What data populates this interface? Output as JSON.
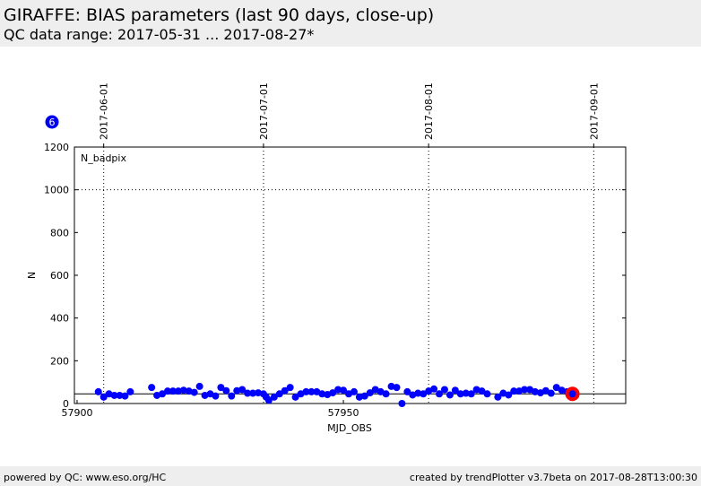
{
  "header": {
    "title": "GIRAFFE: BIAS parameters (last 90 days, close-up)",
    "subtitle": "QC data range: 2017-05-31 ... 2017-08-27*"
  },
  "footer": {
    "left": "powered by QC: www.eso.org/HC",
    "right": "created by trendPlotter v3.7beta on 2017-08-28T13:00:30"
  },
  "badge": {
    "text": "6",
    "color": "#0000ee"
  },
  "chart_data": {
    "type": "scatter",
    "title": "",
    "xlabel": "MJD_OBS",
    "ylabel": "N",
    "panel_label": "N_badpix",
    "xlim": [
      57899.5,
      58003
    ],
    "ylim": [
      0,
      1200
    ],
    "x_ticks": [
      57900,
      57950
    ],
    "y_ticks": [
      0,
      200,
      400,
      600,
      800,
      1000,
      1200
    ],
    "hlines": [
      {
        "y": 1000,
        "style": "dotted"
      },
      {
        "y": 45,
        "style": "solid"
      }
    ],
    "date_ticks": [
      {
        "label": "2017-06-01",
        "x": 57905
      },
      {
        "label": "2017-07-01",
        "x": 57935
      },
      {
        "label": "2017-08-01",
        "x": 57966
      },
      {
        "label": "2017-09-01",
        "x": 57997
      }
    ],
    "grid": true,
    "point_color": "#0000ff",
    "highlight_color": "#ff0000",
    "series": [
      {
        "x": [
          57904,
          57905,
          57906,
          57907,
          57908,
          57909,
          57910,
          57914,
          57915,
          57916,
          57917,
          57918,
          57919,
          57920,
          57921,
          57922,
          57923,
          57924,
          57925,
          57926,
          57927,
          57928,
          57929,
          57930,
          57931,
          57932,
          57933,
          57934,
          57935,
          57935.5,
          57936,
          57937,
          57938,
          57939,
          57940,
          57941,
          57942,
          57943,
          57944,
          57945,
          57946,
          57947,
          57948,
          57949,
          57950,
          57951,
          57952,
          57953,
          57954,
          57955,
          57956,
          57957,
          57958,
          57959,
          57960,
          57961,
          57962,
          57963,
          57964,
          57965,
          57966,
          57967,
          57968,
          57969,
          57970,
          57971,
          57972,
          57973,
          57974,
          57975,
          57976,
          57977,
          57979,
          57980,
          57981,
          57982,
          57983,
          57984,
          57985,
          57986,
          57987,
          57988,
          57989,
          57990,
          57991,
          57992
        ],
        "y": [
          55,
          30,
          45,
          38,
          38,
          35,
          55,
          75,
          38,
          45,
          58,
          58,
          58,
          62,
          58,
          52,
          80,
          38,
          45,
          35,
          75,
          60,
          35,
          60,
          65,
          48,
          48,
          50,
          45,
          30,
          15,
          30,
          45,
          60,
          75,
          30,
          45,
          55,
          55,
          55,
          45,
          42,
          50,
          65,
          62,
          45,
          55,
          30,
          35,
          50,
          65,
          55,
          45,
          80,
          75,
          0,
          55,
          40,
          48,
          45,
          58,
          68,
          45,
          65,
          40,
          62,
          45,
          48,
          45,
          65,
          58,
          45,
          30,
          48,
          40,
          58,
          58,
          65,
          65,
          55,
          50,
          60,
          48,
          75,
          62,
          55
        ]
      }
    ],
    "highlight": {
      "x": 57993,
      "y": 45
    }
  }
}
